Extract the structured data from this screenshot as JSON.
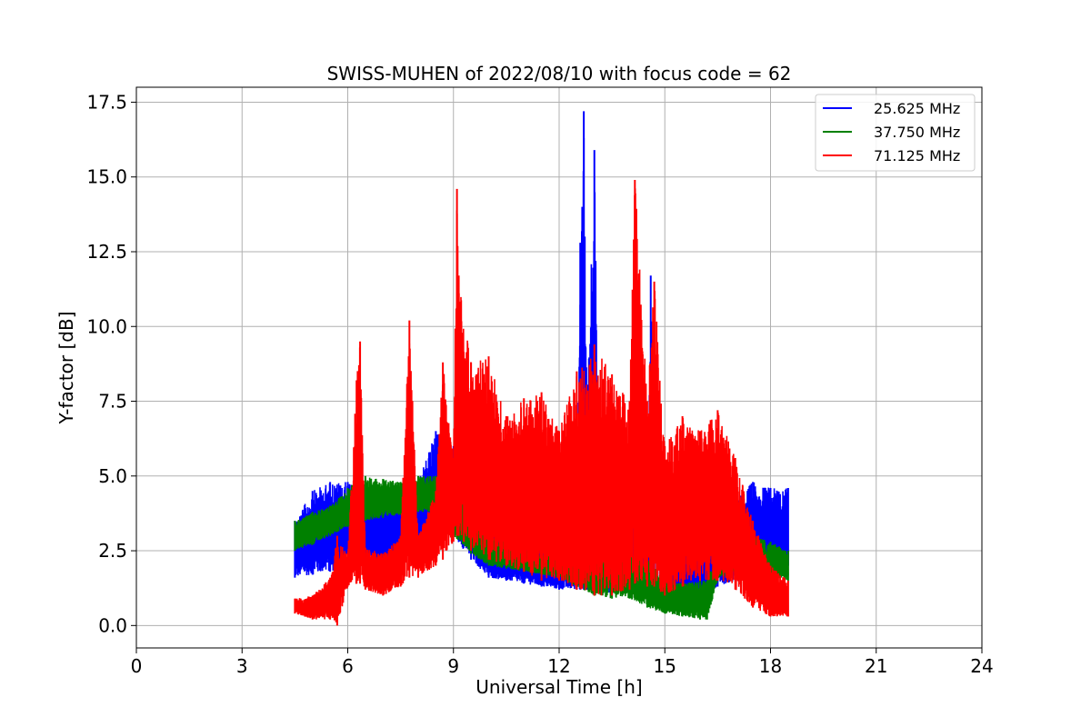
{
  "chart_data": {
    "type": "line",
    "title": "SWISS-MUHEN of 2022/08/10 with focus code = 62",
    "xlabel": "Universal Time [h]",
    "ylabel": "Y-factor [dB]",
    "xlim": [
      0,
      24
    ],
    "ylim": [
      -0.75,
      18.0
    ],
    "xticks": [
      0,
      3,
      6,
      9,
      12,
      15,
      18,
      21,
      24
    ],
    "xtick_labels": [
      "0",
      "3",
      "6",
      "9",
      "12",
      "15",
      "18",
      "21",
      "24"
    ],
    "yticks": [
      0.0,
      2.5,
      5.0,
      7.5,
      10.0,
      12.5,
      15.0,
      17.5
    ],
    "ytick_labels": [
      "0.0",
      "2.5",
      "5.0",
      "7.5",
      "10.0",
      "12.5",
      "15.0",
      "17.5"
    ],
    "grid": true,
    "legend_position": "top-right",
    "series": [
      {
        "name": "25.625 MHz",
        "color": "#0000ff",
        "x": [
          4.5,
          5.0,
          5.5,
          6.0,
          6.5,
          7.0,
          7.5,
          8.0,
          8.5,
          9.0,
          9.5,
          10.0,
          10.5,
          11.0,
          11.5,
          12.0,
          12.5,
          12.6,
          12.7,
          12.8,
          13.0,
          13.1,
          13.5,
          14.0,
          14.5,
          14.6,
          15.0,
          15.5,
          16.0,
          16.5,
          17.0,
          17.5,
          18.0,
          18.5
        ],
        "low": [
          1.6,
          1.7,
          1.8,
          1.9,
          2.0,
          2.1,
          2.3,
          2.6,
          3.0,
          3.0,
          2.2,
          1.6,
          1.5,
          1.4,
          1.3,
          1.2,
          1.2,
          1.2,
          1.2,
          1.2,
          1.1,
          1.1,
          1.1,
          1.1,
          1.0,
          1.0,
          1.0,
          0.9,
          0.9,
          1.3,
          1.5,
          1.6,
          1.8,
          2.0
        ],
        "high": [
          3.5,
          4.5,
          4.8,
          4.8,
          4.6,
          4.5,
          4.4,
          4.8,
          6.5,
          6.0,
          5.0,
          3.2,
          3.0,
          2.8,
          2.6,
          2.6,
          3.0,
          12.8,
          17.2,
          8.0,
          15.9,
          7.0,
          5.0,
          5.5,
          4.0,
          11.7,
          3.5,
          3.0,
          3.2,
          3.0,
          4.2,
          4.8,
          4.6,
          4.6
        ]
      },
      {
        "name": "37.750 MHz",
        "color": "#008000",
        "x": [
          4.5,
          5.0,
          5.5,
          6.0,
          6.5,
          7.0,
          7.5,
          8.0,
          8.5,
          9.0,
          9.5,
          10.0,
          10.5,
          11.0,
          11.5,
          12.0,
          12.5,
          13.0,
          13.5,
          14.0,
          14.5,
          15.0,
          15.5,
          16.0,
          16.2,
          16.5,
          17.0,
          17.5,
          18.0,
          18.5
        ],
        "low": [
          2.5,
          2.7,
          3.0,
          3.3,
          3.5,
          3.6,
          3.7,
          3.8,
          3.8,
          3.0,
          2.4,
          2.0,
          1.9,
          1.8,
          1.7,
          1.6,
          1.3,
          1.0,
          0.9,
          0.9,
          0.6,
          0.4,
          0.3,
          0.2,
          0.2,
          1.5,
          1.8,
          1.8,
          1.6,
          1.5
        ],
        "high": [
          3.5,
          3.8,
          4.0,
          4.6,
          5.0,
          4.9,
          4.8,
          5.0,
          5.0,
          4.6,
          3.8,
          3.0,
          2.8,
          2.6,
          2.4,
          2.4,
          2.4,
          2.3,
          3.5,
          2.6,
          2.2,
          1.6,
          1.4,
          1.5,
          1.5,
          2.5,
          2.8,
          3.0,
          2.8,
          2.5
        ]
      },
      {
        "name": "71.125 MHz",
        "color": "#ff0000",
        "x": [
          4.5,
          5.0,
          5.5,
          5.7,
          6.0,
          6.25,
          6.35,
          6.5,
          7.0,
          7.5,
          7.75,
          8.0,
          8.5,
          8.7,
          9.0,
          9.1,
          9.15,
          9.5,
          10.0,
          10.5,
          11.0,
          11.5,
          12.0,
          12.5,
          13.0,
          13.5,
          14.0,
          14.15,
          14.5,
          14.7,
          15.0,
          15.5,
          16.0,
          16.5,
          17.0,
          17.5,
          18.0,
          18.5
        ],
        "low": [
          0.4,
          0.2,
          0.2,
          0.0,
          1.3,
          1.4,
          1.4,
          1.2,
          1.0,
          1.3,
          1.6,
          1.6,
          2.0,
          2.2,
          2.8,
          3.0,
          3.0,
          2.5,
          2.2,
          2.0,
          1.8,
          1.5,
          1.5,
          1.2,
          1.0,
          1.0,
          1.2,
          1.4,
          1.3,
          1.3,
          1.0,
          1.3,
          1.5,
          1.5,
          1.2,
          0.6,
          0.3,
          0.3
        ],
        "high": [
          0.9,
          1.0,
          1.6,
          3.0,
          2.4,
          8.2,
          9.5,
          2.6,
          2.4,
          3.0,
          10.2,
          3.0,
          4.5,
          8.8,
          5.6,
          14.6,
          11.7,
          8.8,
          9.0,
          7.0,
          7.6,
          7.8,
          6.5,
          8.5,
          9.4,
          8.4,
          7.5,
          14.9,
          7.5,
          11.5,
          6.0,
          7.0,
          6.5,
          7.2,
          5.6,
          3.5,
          2.0,
          1.5
        ]
      }
    ]
  }
}
